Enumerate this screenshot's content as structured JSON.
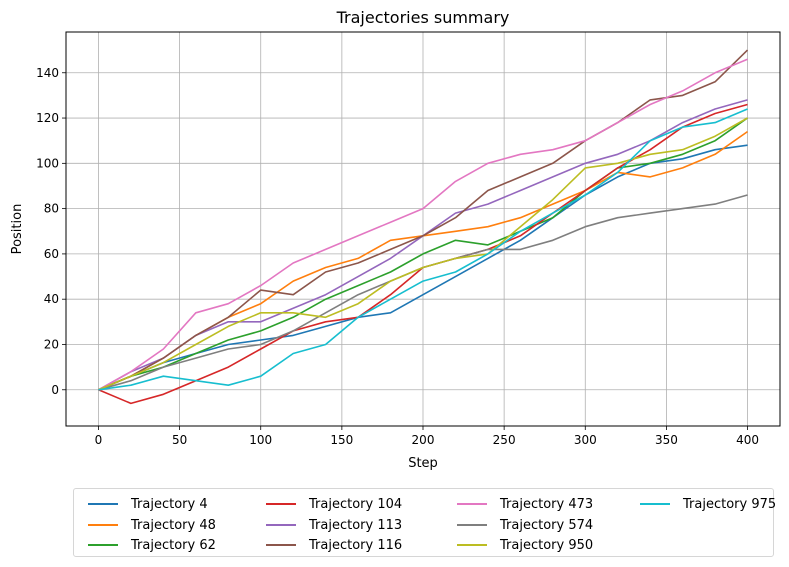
{
  "chart_data": {
    "type": "line",
    "title": "Trajectories summary",
    "xlabel": "Step",
    "ylabel": "Position",
    "xlim": [
      -20,
      420
    ],
    "ylim": [
      -16,
      158
    ],
    "xticks": [
      0,
      50,
      100,
      150,
      200,
      250,
      300,
      350,
      400
    ],
    "yticks": [
      0,
      20,
      40,
      60,
      80,
      100,
      120,
      140
    ],
    "grid": true,
    "legend_position": "bottom-center",
    "x": [
      0,
      20,
      40,
      60,
      80,
      100,
      120,
      140,
      160,
      180,
      200,
      220,
      240,
      260,
      280,
      300,
      320,
      340,
      360,
      380,
      400
    ],
    "series": [
      {
        "name": "Trajectory 4",
        "color": "#1f77b4",
        "values": [
          0,
          6,
          12,
          16,
          20,
          22,
          24,
          28,
          32,
          34,
          42,
          50,
          58,
          66,
          76,
          86,
          94,
          100,
          102,
          106,
          108
        ]
      },
      {
        "name": "Trajectory 48",
        "color": "#ff7f0e",
        "values": [
          0,
          6,
          14,
          24,
          32,
          38,
          48,
          54,
          58,
          66,
          68,
          70,
          72,
          76,
          82,
          88,
          96,
          94,
          98,
          104,
          114
        ]
      },
      {
        "name": "Trajectory 62",
        "color": "#2ca02c",
        "values": [
          0,
          6,
          10,
          16,
          22,
          26,
          32,
          40,
          46,
          52,
          60,
          66,
          64,
          70,
          76,
          88,
          98,
          100,
          104,
          110,
          120
        ]
      },
      {
        "name": "Trajectory 104",
        "color": "#d62728",
        "values": [
          0,
          -6,
          -2,
          4,
          10,
          18,
          26,
          30,
          32,
          42,
          54,
          58,
          62,
          68,
          78,
          88,
          98,
          106,
          116,
          122,
          126
        ]
      },
      {
        "name": "Trajectory 113",
        "color": "#9467bd",
        "values": [
          0,
          8,
          14,
          24,
          30,
          30,
          36,
          42,
          50,
          58,
          68,
          78,
          82,
          88,
          94,
          100,
          104,
          110,
          118,
          124,
          128
        ]
      },
      {
        "name": "Trajectory 116",
        "color": "#8c564b",
        "values": [
          0,
          6,
          14,
          24,
          32,
          44,
          42,
          52,
          56,
          62,
          68,
          76,
          88,
          94,
          100,
          110,
          118,
          128,
          130,
          136,
          150
        ]
      },
      {
        "name": "Trajectory 473",
        "color": "#e377c2",
        "values": [
          0,
          8,
          18,
          34,
          38,
          46,
          56,
          62,
          68,
          74,
          80,
          92,
          100,
          104,
          106,
          110,
          118,
          126,
          132,
          140,
          146
        ]
      },
      {
        "name": "Trajectory 574",
        "color": "#7f7f7f",
        "values": [
          0,
          4,
          10,
          14,
          18,
          20,
          26,
          34,
          42,
          48,
          54,
          58,
          62,
          62,
          66,
          72,
          76,
          78,
          80,
          82,
          86
        ]
      },
      {
        "name": "Trajectory 950",
        "color": "#bcbd22",
        "values": [
          0,
          6,
          12,
          20,
          28,
          34,
          34,
          32,
          38,
          48,
          54,
          58,
          60,
          72,
          84,
          98,
          100,
          104,
          106,
          112,
          120
        ]
      },
      {
        "name": "Trajectory 975",
        "color": "#17becf",
        "values": [
          0,
          2,
          6,
          4,
          2,
          6,
          16,
          20,
          32,
          40,
          48,
          52,
          60,
          70,
          78,
          86,
          96,
          110,
          116,
          118,
          124
        ]
      }
    ]
  }
}
